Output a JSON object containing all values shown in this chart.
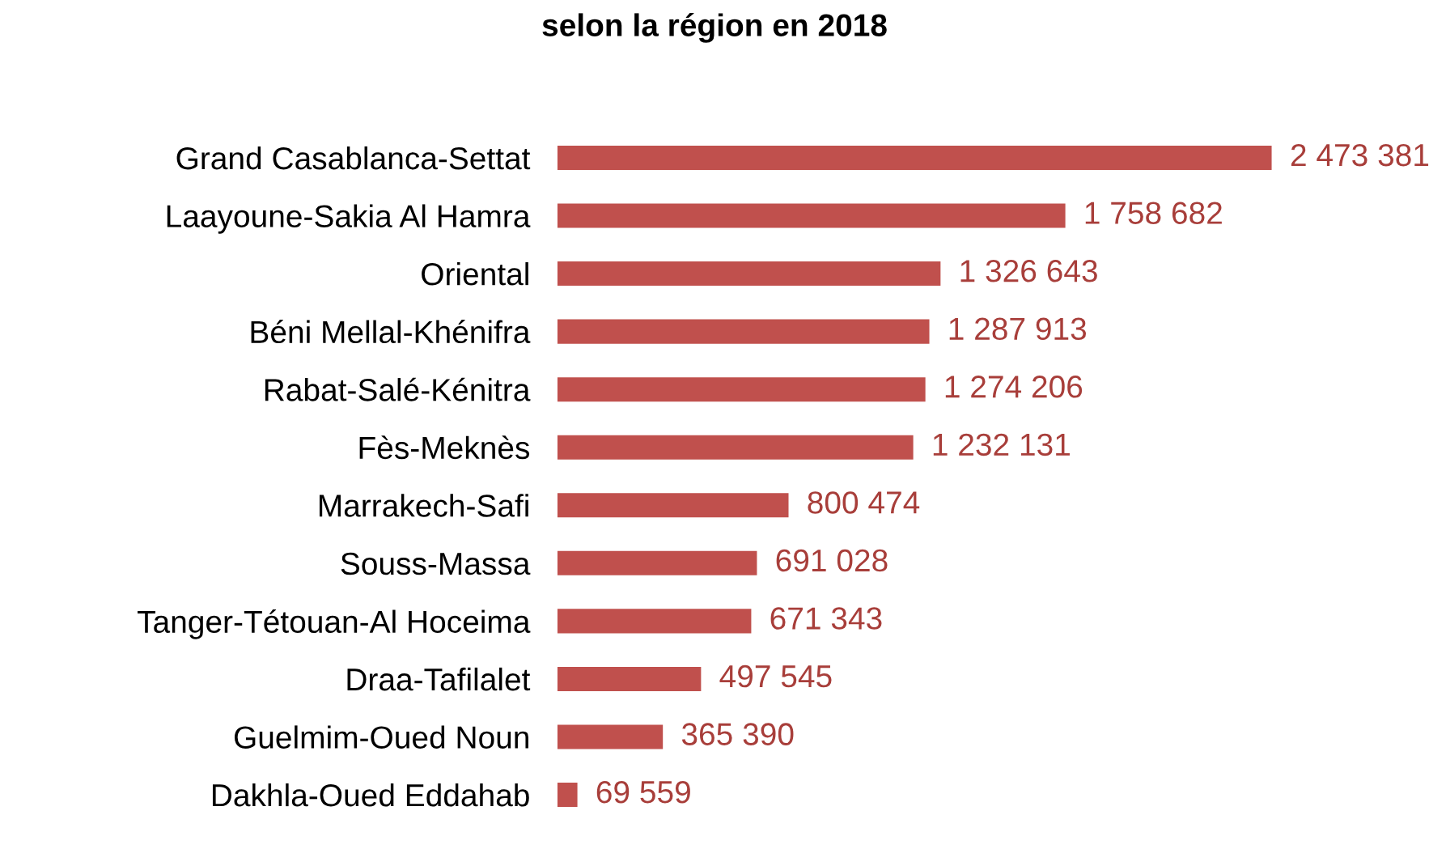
{
  "chart_data": {
    "type": "bar",
    "orientation": "horizontal",
    "title": "selon la région en 2018",
    "categories": [
      "Grand Casablanca-Settat",
      "Laayoune-Sakia Al Hamra",
      "Oriental",
      "Béni Mellal-Khénifra",
      "Rabat-Salé-Kénitra",
      "Fès-Meknès",
      "Marrakech-Safi",
      "Souss-Massa",
      "Tanger-Tétouan-Al Hoceima",
      "Draa-Tafilalet",
      "Guelmim-Oued Noun",
      "Dakhla-Oued Eddahab"
    ],
    "values": [
      2473381,
      1758682,
      1326643,
      1287913,
      1274206,
      1232131,
      800474,
      691028,
      671343,
      497545,
      365390,
      69559
    ],
    "value_labels": [
      "2 473 381",
      "1 758 682",
      "1 326 643",
      "1 287 913",
      "1 274 206",
      "1 232 131",
      "800 474",
      "691 028",
      "671 343",
      "497 545",
      "365 390",
      "69 559"
    ],
    "color": "#c0504d",
    "grid": false,
    "legend": false
  }
}
